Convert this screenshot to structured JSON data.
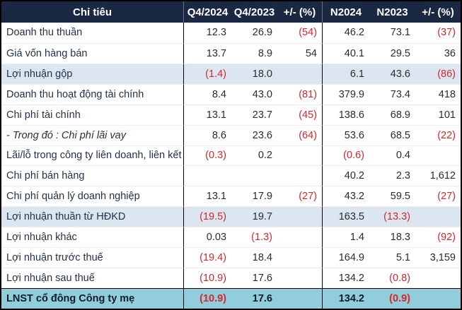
{
  "colors": {
    "header_bg": "#1a2844",
    "header_text": "#ffffff",
    "highlight_bg": "#dce6f1",
    "total_bg": "#92cddc",
    "negative": "#d8262c",
    "label_text": "#243248",
    "number_text": "#2b2b2b",
    "border": "#000000"
  },
  "chart_data": {
    "type": "table",
    "title": "",
    "columns": [
      "Chỉ tiêu",
      "Q4/2024",
      "Q4/2023",
      "+/- (%)",
      "N2024",
      "N2023",
      "+/- (%)"
    ],
    "rows": [
      {
        "label": "Doanh thu thuần",
        "style": "normal",
        "values": [
          "12.3",
          "26.9",
          "(54)",
          "46.2",
          "73.1",
          "(37)"
        ]
      },
      {
        "label": "Giá vốn hàng bán",
        "style": "normal",
        "values": [
          "13.7",
          "8.9",
          "54",
          "40.1",
          "29.5",
          "36"
        ]
      },
      {
        "label": "Lợi nhuận gộp",
        "style": "highlight",
        "values": [
          "(1.4)",
          "18.0",
          "",
          "6.1",
          "43.6",
          "(86)"
        ]
      },
      {
        "label": "Doanh thu hoạt động tài chính",
        "style": "normal",
        "values": [
          "8.4",
          "43.0",
          "(81)",
          "379.9",
          "73.4",
          "418"
        ]
      },
      {
        "label": "Chi phí tài chính",
        "style": "normal",
        "values": [
          "13.1",
          "23.7",
          "(45)",
          "138.6",
          "68.9",
          "101"
        ]
      },
      {
        "label": "- Trong đó : Chi phí lãi vay",
        "style": "italic",
        "values": [
          "8.6",
          "23.6",
          "(64)",
          "53.6",
          "68.5",
          "(22)"
        ]
      },
      {
        "label": "Lãi/lỗ trong công ty liên doanh, liên kết",
        "style": "normal",
        "values": [
          "(0.3)",
          "0.2",
          "",
          "(0.6)",
          "0.4",
          ""
        ]
      },
      {
        "label": "Chi phí bán hàng",
        "style": "normal",
        "values": [
          "",
          "",
          "",
          "40.2",
          "2.3",
          "1,612"
        ]
      },
      {
        "label": "Chi phí quản lý doanh nghiệp",
        "style": "normal",
        "values": [
          "13.1",
          "17.9",
          "(27)",
          "43.2",
          "59.5",
          "(27)"
        ]
      },
      {
        "label": "Lợi nhuận thuần từ HĐKD",
        "style": "highlight",
        "values": [
          "(19.5)",
          "19.7",
          "",
          "163.5",
          "(13.3)",
          ""
        ]
      },
      {
        "label": "Lợi nhuận khác",
        "style": "normal",
        "values": [
          "0.03",
          "(1.3)",
          "",
          "1.4",
          "18.3",
          "(92)"
        ]
      },
      {
        "label": "Lợi nhuận trước thuế",
        "style": "normal",
        "values": [
          "(19.4)",
          "18.4",
          "",
          "164.9",
          "5.1",
          "3,159"
        ]
      },
      {
        "label": "Lợi nhuận sau thuế",
        "style": "normal",
        "values": [
          "(10.9)",
          "17.6",
          "",
          "134.2",
          "(0.8)",
          ""
        ]
      },
      {
        "label": "LNST cổ đông Công ty mẹ",
        "style": "total",
        "values": [
          "(10.9)",
          "17.6",
          "",
          "134.2",
          "(0.9)",
          ""
        ]
      }
    ]
  }
}
